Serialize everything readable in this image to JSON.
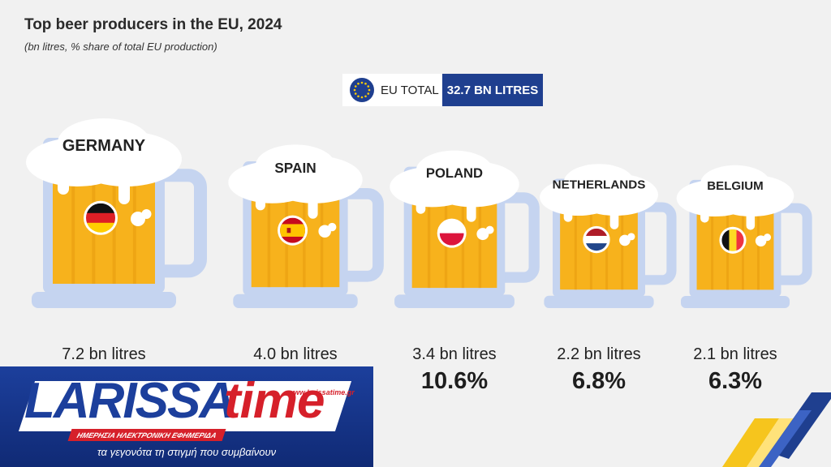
{
  "title": "Top beer producers in the EU, 2024",
  "subtitle": "(bn litres, % share of total EU production)",
  "eu_total": {
    "label": "EU TOTAL",
    "value": "32.7 BN LITRES"
  },
  "colors": {
    "beer": "#f7b21c",
    "glass": "#c5d4f0",
    "foam": "#ffffff",
    "eu_blue": "#1f3f8f"
  },
  "chart_data": {
    "type": "bar",
    "categories": [
      "GERMANY",
      "SPAIN",
      "POLAND",
      "NETHERLANDS",
      "BELGIUM"
    ],
    "values": [
      7.2,
      4.0,
      3.4,
      2.2,
      2.1
    ],
    "value_labels": [
      "7.2 bn litres",
      "4.0 bn litres",
      "3.4 bn litres",
      "2.2 bn litres",
      "2.1 bn litres"
    ],
    "shares": [
      null,
      null,
      10.6,
      6.8,
      6.3
    ],
    "share_labels": [
      "",
      "",
      "10.6%",
      "6.8%",
      "6.3%"
    ],
    "flags": [
      "de-flag-icon",
      "es-flag-icon",
      "pl-flag-icon",
      "nl-flag-icon",
      "be-flag-icon"
    ],
    "title": "Top beer producers in the EU, 2024"
  },
  "logo": {
    "word1": "LARISSA",
    "word2": "time",
    "strip": "ΗΜΕΡΗΣΙΑ ΗΛΕΚΤΡΟΝΙΚΗ ΕΦΗΜΕΡΙΔΑ",
    "url": "www.larissatime.gr",
    "tagline": "τα γεγονότα τη στιγμή που συμβαίνουν"
  }
}
